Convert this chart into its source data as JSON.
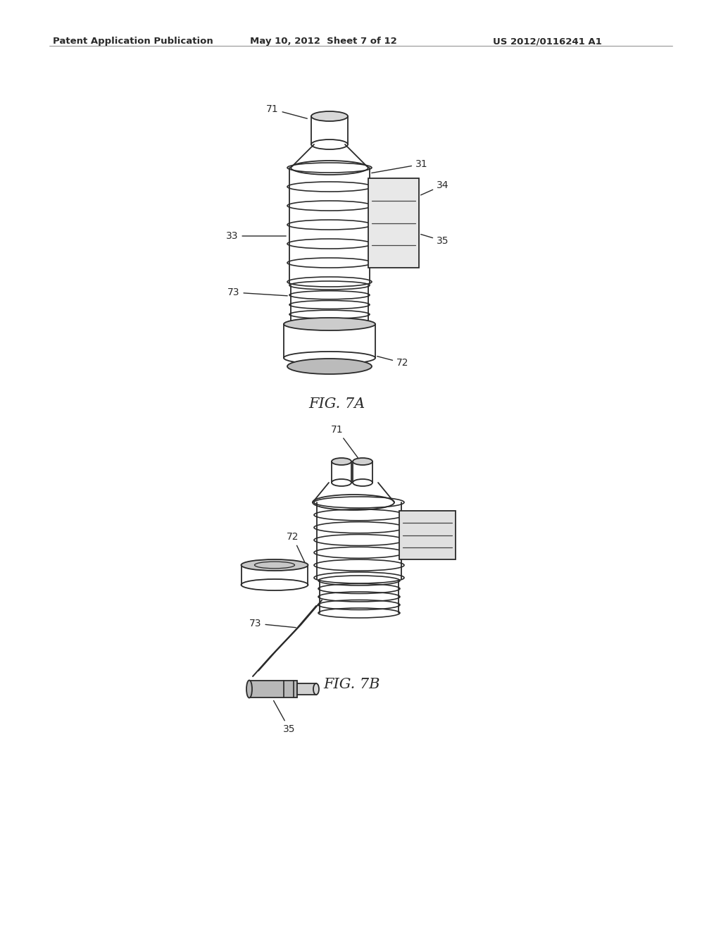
{
  "background_color": "#ffffff",
  "header_left": "Patent Application Publication",
  "header_mid": "May 10, 2012  Sheet 7 of 12",
  "header_right": "US 2012/0116241 A1",
  "fig7a_label": "FIG. 7A",
  "fig7b_label": "FIG. 7B",
  "line_color": "#2a2a2a",
  "line_width": 1.3,
  "annotation_fontsize": 10,
  "header_fontsize": 9.5,
  "caption_fontsize": 15
}
